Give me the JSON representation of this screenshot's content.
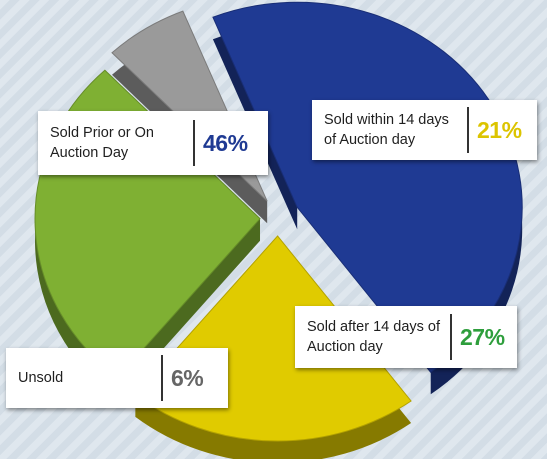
{
  "chart_data": {
    "type": "pie",
    "style": "3d exploded",
    "slices": [
      {
        "label": "Sold Prior or On Auction Day",
        "value": 46,
        "value_label": "46%",
        "color": "#1f3a93",
        "label_color": "#1f3a93"
      },
      {
        "label": "Sold within 14 days of Auction day",
        "value": 21,
        "value_label": "21%",
        "color": "#e0cb00",
        "label_color": "#dcc400"
      },
      {
        "label": "Sold after 14 days of Auction day",
        "value": 27,
        "value_label": "27%",
        "color": "#7fb033",
        "label_color": "#2e9e3c"
      },
      {
        "label": "Unsold",
        "value": 6,
        "value_label": "6%",
        "color": "#9a9a9a",
        "label_color": "#666666"
      }
    ],
    "legend": "callouts"
  }
}
